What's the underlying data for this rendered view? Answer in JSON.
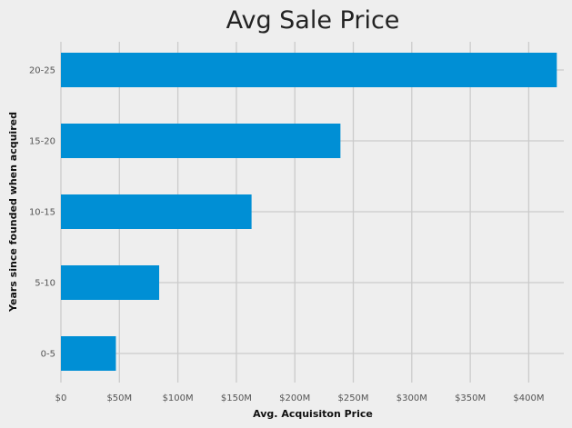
{
  "chart_data": {
    "type": "bar",
    "orientation": "horizontal",
    "title": "Avg Sale Price",
    "xlabel": "Avg. Acquisiton Price",
    "ylabel": "Years since founded when acquired",
    "categories": [
      "0-5",
      "5-10",
      "10-15",
      "15-20",
      "20-25"
    ],
    "values": [
      47000000,
      84000000,
      163000000,
      239000000,
      424000000
    ],
    "xlim": [
      0,
      430000000
    ],
    "x_ticks": [
      0,
      50000000,
      100000000,
      150000000,
      200000000,
      250000000,
      300000000,
      350000000,
      400000000
    ],
    "x_tick_labels": [
      "$0",
      "$50M",
      "$100M",
      "$150M",
      "$200M",
      "$250M",
      "$300M",
      "$350M",
      "$400M"
    ],
    "grid": true,
    "legend": "none",
    "colors": {
      "bar": "#008fd5",
      "background": "#eeeeee",
      "grid": "#cbcbcb"
    }
  }
}
